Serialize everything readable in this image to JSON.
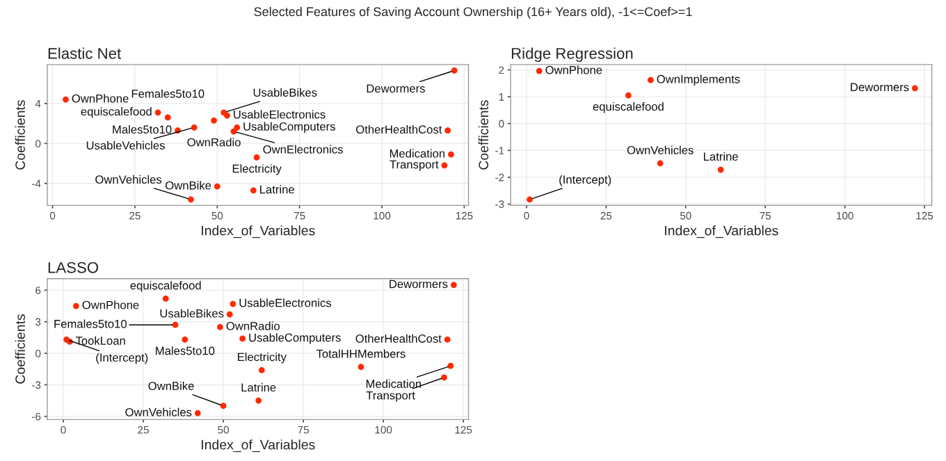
{
  "chart_data": [
    {
      "type": "scatter",
      "title": "Elastic Net",
      "subtitle": "Selected Features of Saving Account Ownership (16+ Years old), -1<=Coef>=1",
      "xlabel": "Index_of_Variables",
      "ylabel": "Coefficients",
      "xlim": [
        -1.6,
        126.3
      ],
      "xticks": [
        0,
        25,
        50,
        75,
        100,
        125
      ],
      "ylim": [
        -6.2,
        7.9
      ],
      "yticks": [
        -4,
        0,
        4
      ],
      "grid": true,
      "marker": "circle",
      "series": [
        {
          "color": "#ff2a00",
          "x": [
            122,
            4,
            32,
            35,
            52,
            53,
            49,
            38,
            43,
            56,
            55,
            120,
            121,
            62,
            119,
            50,
            61,
            42
          ],
          "values": [
            7.3,
            4.4,
            3.1,
            2.6,
            3.1,
            2.8,
            2.3,
            1.3,
            1.6,
            1.6,
            1.2,
            1.3,
            -1.1,
            -1.4,
            -2.2,
            -4.3,
            -4.7,
            -5.6
          ]
        }
      ],
      "annotations": [
        {
          "text": "Dewormers",
          "x": 122,
          "y": 7.3
        },
        {
          "text": "OwnPhone",
          "x": 4,
          "y": 4.4
        },
        {
          "text": "equiscalefood",
          "x": 32,
          "y": 3.1
        },
        {
          "text": "Females5to10",
          "x": 35,
          "y": 2.6
        },
        {
          "text": "UsableBikes",
          "x": 52,
          "y": 3.1
        },
        {
          "text": "UsableElectronics",
          "x": 53,
          "y": 2.8
        },
        {
          "text": "OwnRadio",
          "x": 49,
          "y": 2.3
        },
        {
          "text": "Males5to10",
          "x": 38,
          "y": 1.3
        },
        {
          "text": "UsableVehicles",
          "x": 43,
          "y": 1.6
        },
        {
          "text": "UsableComputers",
          "x": 56,
          "y": 1.6
        },
        {
          "text": "OwnElectronics",
          "x": 55,
          "y": 1.2
        },
        {
          "text": "OtherHealthCost",
          "x": 120,
          "y": 1.3
        },
        {
          "text": "Medication",
          "x": 121,
          "y": -1.1
        },
        {
          "text": "Electricity",
          "x": 62,
          "y": -1.4
        },
        {
          "text": "Transport",
          "x": 119,
          "y": -2.2
        },
        {
          "text": "OwnBike",
          "x": 50,
          "y": -4.3
        },
        {
          "text": "Latrine",
          "x": 61,
          "y": -4.7
        },
        {
          "text": "OwnVehicles",
          "x": 42,
          "y": -5.6
        }
      ]
    },
    {
      "type": "scatter",
      "title": "Ridge Regression",
      "xlabel": "Index_of_Variables",
      "ylabel": "Coefficients",
      "xlim": [
        -5,
        127.3
      ],
      "xticks": [
        0,
        25,
        50,
        75,
        100,
        125
      ],
      "ylim": [
        -3.05,
        2.2
      ],
      "yticks": [
        -3,
        -2,
        -1,
        0,
        1,
        2
      ],
      "grid": true,
      "marker": "circle",
      "series": [
        {
          "color": "#ff2a00",
          "x": [
            4,
            39,
            32,
            122,
            42,
            61,
            1
          ],
          "values": [
            1.96,
            1.62,
            1.05,
            1.32,
            -1.48,
            -1.72,
            -2.83
          ]
        }
      ],
      "annotations": [
        {
          "text": "OwnPhone",
          "x": 4,
          "y": 1.96
        },
        {
          "text": "OwnImplements",
          "x": 39,
          "y": 1.62
        },
        {
          "text": "equiscalefood",
          "x": 32,
          "y": 1.05
        },
        {
          "text": "Dewormers",
          "x": 122,
          "y": 1.32
        },
        {
          "text": "OwnVehicles",
          "x": 42,
          "y": -1.48
        },
        {
          "text": "Latrine",
          "x": 61,
          "y": -1.72
        },
        {
          "text": "(Intercept)",
          "x": 1,
          "y": -2.83
        }
      ]
    },
    {
      "type": "scatter",
      "title": "LASSO",
      "xlabel": "Index_of_Variables",
      "ylabel": "Coefficients",
      "xlim": [
        -5,
        126.6
      ],
      "xticks": [
        0,
        25,
        50,
        75,
        100,
        125
      ],
      "ylim": [
        -6.3,
        7.1
      ],
      "yticks": [
        -6,
        -3,
        0,
        3,
        6
      ],
      "grid": true,
      "marker": "circle",
      "series": [
        {
          "color": "#ff2a00",
          "x": [
            122,
            4,
            32,
            53,
            52,
            35,
            49,
            38,
            56,
            1,
            2,
            120,
            62,
            93,
            121,
            119,
            61,
            50,
            42
          ],
          "values": [
            6.5,
            4.5,
            5.2,
            4.7,
            3.7,
            2.7,
            2.5,
            1.3,
            1.4,
            1.3,
            1.1,
            1.3,
            -1.6,
            -1.3,
            -1.2,
            -2.3,
            -4.5,
            -5.0,
            -5.7
          ]
        }
      ],
      "annotations": [
        {
          "text": "Dewormers",
          "x": 122,
          "y": 6.5
        },
        {
          "text": "OwnPhone",
          "x": 4,
          "y": 4.5
        },
        {
          "text": "equiscalefood",
          "x": 32,
          "y": 5.2
        },
        {
          "text": "UsableElectronics",
          "x": 53,
          "y": 4.7
        },
        {
          "text": "UsableBikes",
          "x": 52,
          "y": 3.7
        },
        {
          "text": "Females5to10",
          "x": 35,
          "y": 2.7
        },
        {
          "text": "OwnRadio",
          "x": 49,
          "y": 2.5
        },
        {
          "text": "Males5to10",
          "x": 38,
          "y": 1.3
        },
        {
          "text": "UsableComputers",
          "x": 56,
          "y": 1.4
        },
        {
          "text": "(Intercept)",
          "x": 1,
          "y": 1.3
        },
        {
          "text": "TookLoan",
          "x": 2,
          "y": 1.1
        },
        {
          "text": "OtherHealthCost",
          "x": 120,
          "y": 1.3
        },
        {
          "text": "Electricity",
          "x": 62,
          "y": -1.6
        },
        {
          "text": "TotalHHMembers",
          "x": 93,
          "y": -1.3
        },
        {
          "text": "Medication",
          "x": 121,
          "y": -1.2
        },
        {
          "text": "Transport",
          "x": 119,
          "y": -2.3
        },
        {
          "text": "Latrine",
          "x": 61,
          "y": -4.5
        },
        {
          "text": "OwnBike",
          "x": 50,
          "y": -5.0
        },
        {
          "text": "OwnVehicles",
          "x": 42,
          "y": -5.7
        }
      ]
    }
  ]
}
